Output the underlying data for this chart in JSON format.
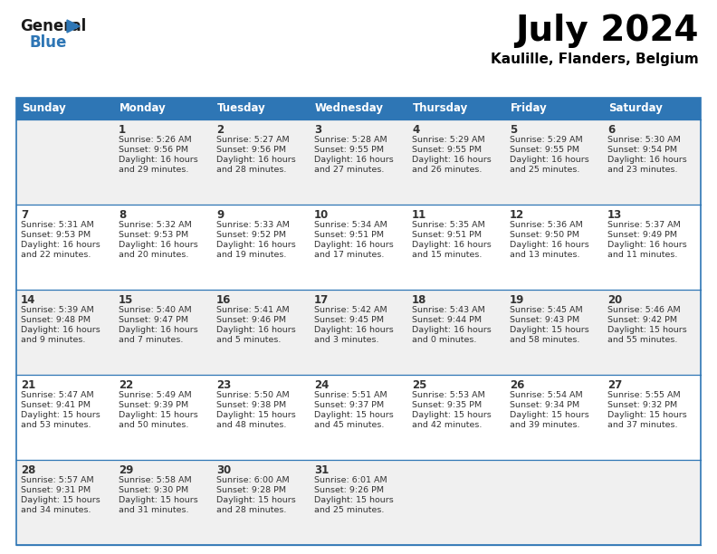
{
  "title": "July 2024",
  "subtitle": "Kaulille, Flanders, Belgium",
  "header_bg": "#2e76b5",
  "header_text": "#ffffff",
  "days_of_week": [
    "Sunday",
    "Monday",
    "Tuesday",
    "Wednesday",
    "Thursday",
    "Friday",
    "Saturday"
  ],
  "row_bg_odd": "#f0f0f0",
  "row_bg_even": "#ffffff",
  "cell_text_color": "#333333",
  "border_color": "#2e76b5",
  "calendar": [
    [
      {
        "day": "",
        "lines": []
      },
      {
        "day": "1",
        "lines": [
          "Sunrise: 5:26 AM",
          "Sunset: 9:56 PM",
          "Daylight: 16 hours",
          "and 29 minutes."
        ]
      },
      {
        "day": "2",
        "lines": [
          "Sunrise: 5:27 AM",
          "Sunset: 9:56 PM",
          "Daylight: 16 hours",
          "and 28 minutes."
        ]
      },
      {
        "day": "3",
        "lines": [
          "Sunrise: 5:28 AM",
          "Sunset: 9:55 PM",
          "Daylight: 16 hours",
          "and 27 minutes."
        ]
      },
      {
        "day": "4",
        "lines": [
          "Sunrise: 5:29 AM",
          "Sunset: 9:55 PM",
          "Daylight: 16 hours",
          "and 26 minutes."
        ]
      },
      {
        "day": "5",
        "lines": [
          "Sunrise: 5:29 AM",
          "Sunset: 9:55 PM",
          "Daylight: 16 hours",
          "and 25 minutes."
        ]
      },
      {
        "day": "6",
        "lines": [
          "Sunrise: 5:30 AM",
          "Sunset: 9:54 PM",
          "Daylight: 16 hours",
          "and 23 minutes."
        ]
      }
    ],
    [
      {
        "day": "7",
        "lines": [
          "Sunrise: 5:31 AM",
          "Sunset: 9:53 PM",
          "Daylight: 16 hours",
          "and 22 minutes."
        ]
      },
      {
        "day": "8",
        "lines": [
          "Sunrise: 5:32 AM",
          "Sunset: 9:53 PM",
          "Daylight: 16 hours",
          "and 20 minutes."
        ]
      },
      {
        "day": "9",
        "lines": [
          "Sunrise: 5:33 AM",
          "Sunset: 9:52 PM",
          "Daylight: 16 hours",
          "and 19 minutes."
        ]
      },
      {
        "day": "10",
        "lines": [
          "Sunrise: 5:34 AM",
          "Sunset: 9:51 PM",
          "Daylight: 16 hours",
          "and 17 minutes."
        ]
      },
      {
        "day": "11",
        "lines": [
          "Sunrise: 5:35 AM",
          "Sunset: 9:51 PM",
          "Daylight: 16 hours",
          "and 15 minutes."
        ]
      },
      {
        "day": "12",
        "lines": [
          "Sunrise: 5:36 AM",
          "Sunset: 9:50 PM",
          "Daylight: 16 hours",
          "and 13 minutes."
        ]
      },
      {
        "day": "13",
        "lines": [
          "Sunrise: 5:37 AM",
          "Sunset: 9:49 PM",
          "Daylight: 16 hours",
          "and 11 minutes."
        ]
      }
    ],
    [
      {
        "day": "14",
        "lines": [
          "Sunrise: 5:39 AM",
          "Sunset: 9:48 PM",
          "Daylight: 16 hours",
          "and 9 minutes."
        ]
      },
      {
        "day": "15",
        "lines": [
          "Sunrise: 5:40 AM",
          "Sunset: 9:47 PM",
          "Daylight: 16 hours",
          "and 7 minutes."
        ]
      },
      {
        "day": "16",
        "lines": [
          "Sunrise: 5:41 AM",
          "Sunset: 9:46 PM",
          "Daylight: 16 hours",
          "and 5 minutes."
        ]
      },
      {
        "day": "17",
        "lines": [
          "Sunrise: 5:42 AM",
          "Sunset: 9:45 PM",
          "Daylight: 16 hours",
          "and 3 minutes."
        ]
      },
      {
        "day": "18",
        "lines": [
          "Sunrise: 5:43 AM",
          "Sunset: 9:44 PM",
          "Daylight: 16 hours",
          "and 0 minutes."
        ]
      },
      {
        "day": "19",
        "lines": [
          "Sunrise: 5:45 AM",
          "Sunset: 9:43 PM",
          "Daylight: 15 hours",
          "and 58 minutes."
        ]
      },
      {
        "day": "20",
        "lines": [
          "Sunrise: 5:46 AM",
          "Sunset: 9:42 PM",
          "Daylight: 15 hours",
          "and 55 minutes."
        ]
      }
    ],
    [
      {
        "day": "21",
        "lines": [
          "Sunrise: 5:47 AM",
          "Sunset: 9:41 PM",
          "Daylight: 15 hours",
          "and 53 minutes."
        ]
      },
      {
        "day": "22",
        "lines": [
          "Sunrise: 5:49 AM",
          "Sunset: 9:39 PM",
          "Daylight: 15 hours",
          "and 50 minutes."
        ]
      },
      {
        "day": "23",
        "lines": [
          "Sunrise: 5:50 AM",
          "Sunset: 9:38 PM",
          "Daylight: 15 hours",
          "and 48 minutes."
        ]
      },
      {
        "day": "24",
        "lines": [
          "Sunrise: 5:51 AM",
          "Sunset: 9:37 PM",
          "Daylight: 15 hours",
          "and 45 minutes."
        ]
      },
      {
        "day": "25",
        "lines": [
          "Sunrise: 5:53 AM",
          "Sunset: 9:35 PM",
          "Daylight: 15 hours",
          "and 42 minutes."
        ]
      },
      {
        "day": "26",
        "lines": [
          "Sunrise: 5:54 AM",
          "Sunset: 9:34 PM",
          "Daylight: 15 hours",
          "and 39 minutes."
        ]
      },
      {
        "day": "27",
        "lines": [
          "Sunrise: 5:55 AM",
          "Sunset: 9:32 PM",
          "Daylight: 15 hours",
          "and 37 minutes."
        ]
      }
    ],
    [
      {
        "day": "28",
        "lines": [
          "Sunrise: 5:57 AM",
          "Sunset: 9:31 PM",
          "Daylight: 15 hours",
          "and 34 minutes."
        ]
      },
      {
        "day": "29",
        "lines": [
          "Sunrise: 5:58 AM",
          "Sunset: 9:30 PM",
          "Daylight: 15 hours",
          "and 31 minutes."
        ]
      },
      {
        "day": "30",
        "lines": [
          "Sunrise: 6:00 AM",
          "Sunset: 9:28 PM",
          "Daylight: 15 hours",
          "and 28 minutes."
        ]
      },
      {
        "day": "31",
        "lines": [
          "Sunrise: 6:01 AM",
          "Sunset: 9:26 PM",
          "Daylight: 15 hours",
          "and 25 minutes."
        ]
      },
      {
        "day": "",
        "lines": []
      },
      {
        "day": "",
        "lines": []
      },
      {
        "day": "",
        "lines": []
      }
    ]
  ],
  "logo_text_general": "General",
  "logo_text_blue": "Blue",
  "logo_triangle_color": "#2e76b5",
  "fig_width": 7.92,
  "fig_height": 6.12,
  "dpi": 100
}
